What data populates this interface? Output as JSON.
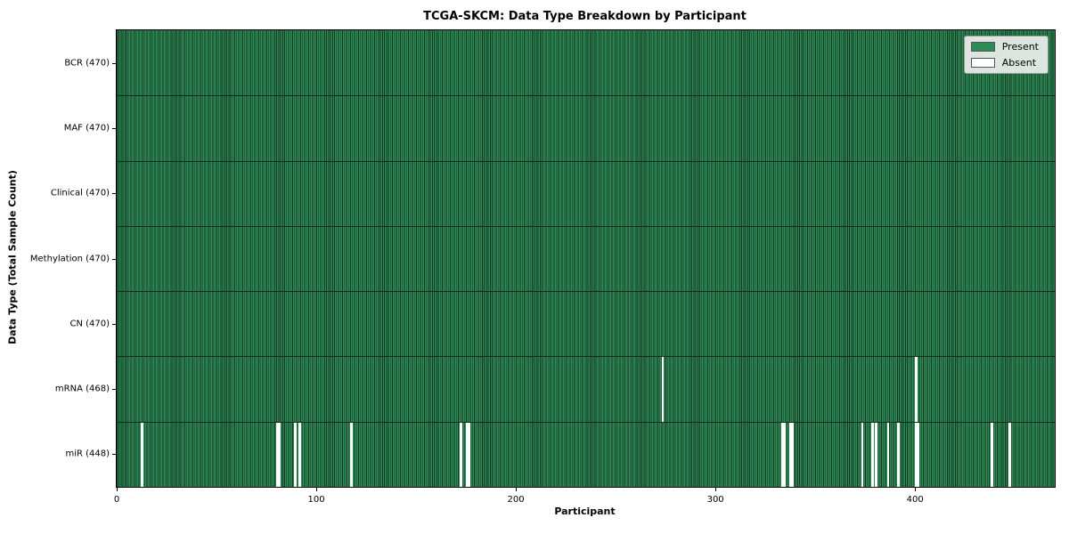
{
  "chart_data": {
    "type": "heatmap",
    "title": "TCGA-SKCM: Data Type Breakdown by Participant",
    "xlabel": "Participant",
    "ylabel": "Data Type (Total Sample Count)",
    "n_participants": 470,
    "x_range": [
      0,
      470
    ],
    "x_ticks": [
      0,
      100,
      200,
      300,
      400
    ],
    "grid": false,
    "legend_position": "upper right",
    "colors": {
      "present": "#2e8b57",
      "present_edge": "#12361f",
      "absent": "#ffffff",
      "spine": "#000000",
      "legend_bg": "#ecf0ec"
    },
    "legend": [
      {
        "label": "Present",
        "color": "#2e8b57"
      },
      {
        "label": "Absent",
        "color": "#ffffff"
      }
    ],
    "rows": [
      {
        "label": "BCR (470)",
        "data_type": "BCR",
        "present_count": 470,
        "absent_participants": []
      },
      {
        "label": "MAF (470)",
        "data_type": "MAF",
        "present_count": 470,
        "absent_participants": []
      },
      {
        "label": "Clinical (470)",
        "data_type": "Clinical",
        "present_count": 470,
        "absent_participants": []
      },
      {
        "label": "Methylation (470)",
        "data_type": "Methylation",
        "present_count": 470,
        "absent_participants": []
      },
      {
        "label": "CN (470)",
        "data_type": "CN",
        "present_count": 470,
        "absent_participants": []
      },
      {
        "label": "mRNA (468)",
        "data_type": "mRNA",
        "present_count": 468,
        "absent_participants": [
          273,
          400
        ]
      },
      {
        "label": "miR (448)",
        "data_type": "miR",
        "present_count": 448,
        "absent_participants": [
          12,
          80,
          81,
          89,
          91,
          117,
          172,
          175,
          176,
          333,
          334,
          337,
          338,
          373,
          378,
          380,
          386,
          391,
          400,
          401,
          438,
          447
        ]
      }
    ]
  }
}
